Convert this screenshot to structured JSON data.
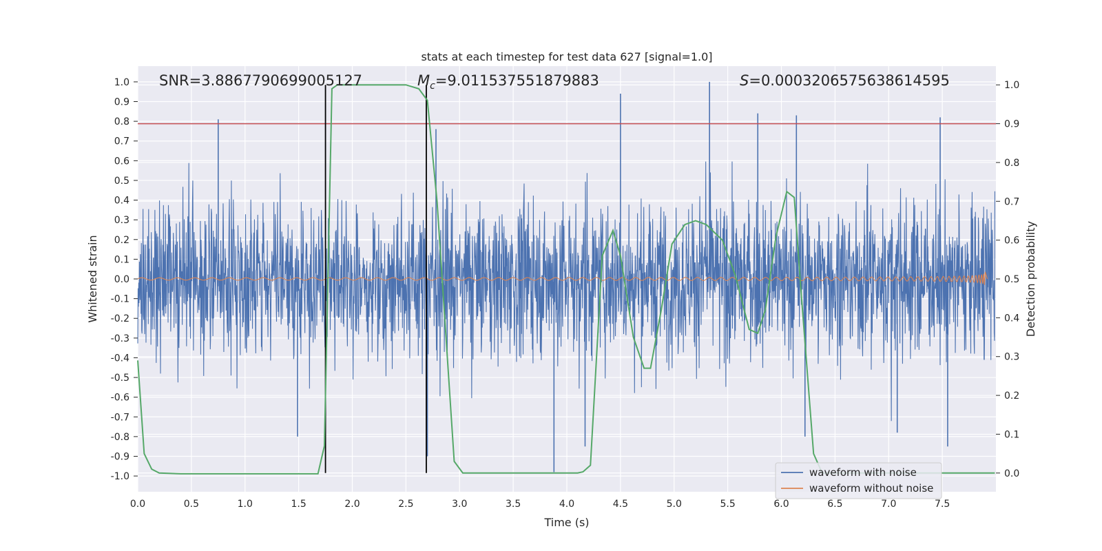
{
  "chart_data": {
    "type": "line",
    "title": "stats at each timestep for test data 627 [signal=1.0]",
    "xlabel": "Time (s)",
    "ylabel": "Whitened strain",
    "y2label": "Detection probability",
    "xlim": [
      0.0,
      8.0
    ],
    "ylim": [
      -1.08,
      1.08
    ],
    "y2lim": [
      -0.0483,
      1.0483
    ],
    "grid": true,
    "legend_position": "lower-right",
    "x_ticks": [
      "0.0",
      "0.5",
      "1.0",
      "1.5",
      "2.0",
      "2.5",
      "3.0",
      "3.5",
      "4.0",
      "4.5",
      "5.0",
      "5.5",
      "6.0",
      "6.5",
      "7.0",
      "7.5"
    ],
    "y_ticks": [
      "-1.0",
      "-0.9",
      "-0.8",
      "-0.7",
      "-0.6",
      "-0.5",
      "-0.4",
      "-0.3",
      "-0.2",
      "-0.1",
      "0.0",
      "0.1",
      "0.2",
      "0.3",
      "0.4",
      "0.5",
      "0.6",
      "0.7",
      "0.8",
      "0.9",
      "1.0"
    ],
    "y2_ticks": [
      "0.0",
      "0.1",
      "0.2",
      "0.3",
      "0.4",
      "0.5",
      "0.6",
      "0.7",
      "0.8",
      "0.9",
      "1.0"
    ],
    "annotations": {
      "snr": "SNR=3.8867790699005127",
      "mc_symbol": "M",
      "mc_sub": "c",
      "mc_value": "=9.011537551879883",
      "s_symbol": "S",
      "s_value": "=0.0003206575638614595"
    },
    "series": [
      {
        "name": "waveform with noise",
        "color": "#4c72b0",
        "x_range": [
          0.0,
          7.99
        ],
        "envelope_typical": 0.45,
        "spikes": [
          {
            "x": 0.75,
            "y": 0.81
          },
          {
            "x": 1.49,
            "y": -0.8
          },
          {
            "x": 2.7,
            "y": -0.9
          },
          {
            "x": 2.78,
            "y": 0.76
          },
          {
            "x": 3.88,
            "y": -0.98
          },
          {
            "x": 4.5,
            "y": 0.94
          },
          {
            "x": 5.33,
            "y": 1.0
          },
          {
            "x": 5.78,
            "y": 0.84
          },
          {
            "x": 6.14,
            "y": 0.83
          },
          {
            "x": 7.48,
            "y": 0.82
          },
          {
            "x": 7.55,
            "y": -0.85
          },
          {
            "x": 7.08,
            "y": -0.78
          },
          {
            "x": 6.22,
            "y": -0.8
          },
          {
            "x": 4.17,
            "y": -0.85
          }
        ]
      },
      {
        "name": "waveform without noise",
        "color": "#dd8452",
        "x_range": [
          0.0,
          7.92
        ],
        "chirp_end_x": 7.9,
        "chirp_peak_y": 0.19,
        "chirp_trough_y": -0.14
      },
      {
        "name": "detection probability",
        "color": "#55a868",
        "axis": "right",
        "x": [
          0.0,
          0.06,
          0.13,
          0.2,
          0.4,
          1.0,
          1.68,
          1.74,
          1.81,
          1.86,
          2.5,
          2.62,
          2.7,
          2.79,
          2.95,
          3.03,
          3.2,
          4.1,
          4.15,
          4.22,
          4.33,
          4.43,
          4.5,
          4.62,
          4.72,
          4.78,
          4.88,
          4.98,
          5.1,
          5.2,
          5.3,
          5.45,
          5.57,
          5.7,
          5.78,
          5.85,
          5.95,
          6.05,
          6.12,
          6.18,
          6.3,
          6.38,
          6.5,
          7.99
        ],
        "y": [
          0.29,
          0.05,
          0.01,
          0.0,
          -0.002,
          -0.002,
          -0.002,
          0.07,
          0.99,
          1.0,
          1.0,
          0.99,
          0.96,
          0.7,
          0.03,
          0.0,
          0.0,
          0.0,
          0.003,
          0.02,
          0.56,
          0.625,
          0.56,
          0.35,
          0.27,
          0.27,
          0.42,
          0.59,
          0.64,
          0.65,
          0.64,
          0.6,
          0.51,
          0.37,
          0.36,
          0.42,
          0.61,
          0.725,
          0.71,
          0.48,
          0.05,
          0.0,
          0.0,
          0.0
        ]
      }
    ],
    "threshold_line": {
      "y2": 0.9,
      "color": "#c44e52"
    },
    "vlines": {
      "x": [
        1.75,
        2.69
      ],
      "y2_range": [
        0.0,
        1.0
      ],
      "color": "#000000"
    }
  }
}
